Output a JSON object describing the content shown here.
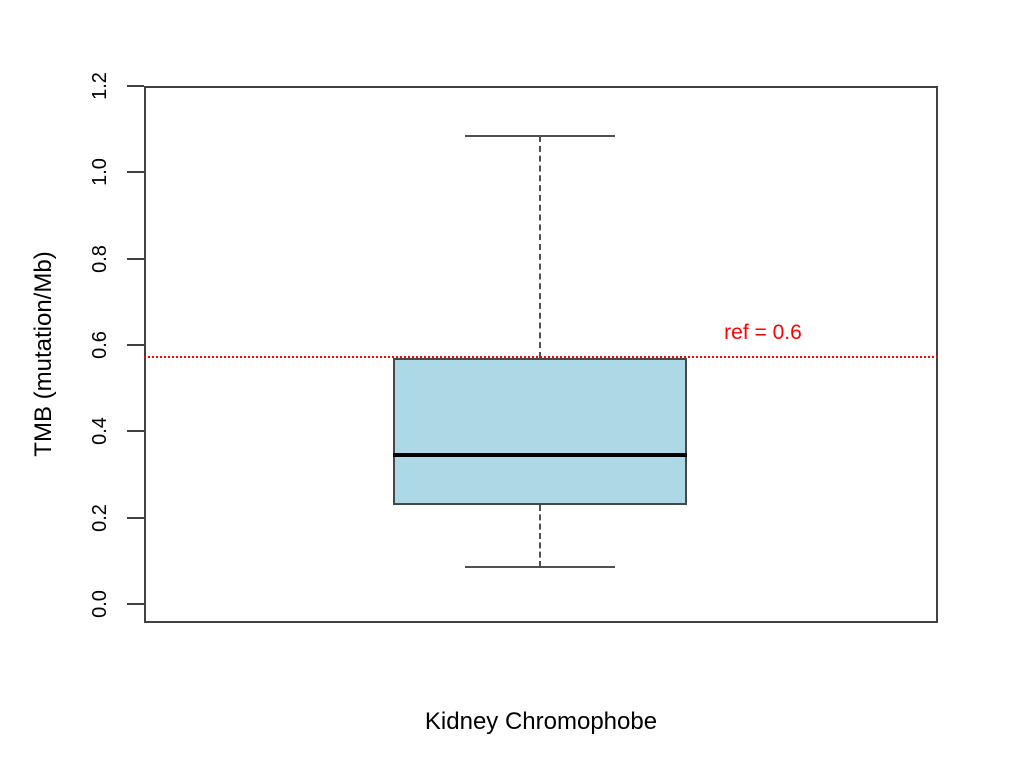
{
  "figure": {
    "background": "#ffffff",
    "colors": {
      "box_fill": "#ADD8E6",
      "box_border": "#474747",
      "median": "#000000",
      "whisker": "#4f4f4f",
      "frame": "#414141",
      "ref": "#ff0000",
      "text": "#000000"
    }
  },
  "chart_data": {
    "type": "boxplot",
    "title": "",
    "xlabel": "Kidney Chromophobe",
    "ylabel": "TMB (mutation/Mb)",
    "ylim": [
      0,
      1.2
    ],
    "y_ticks": [
      0.0,
      0.2,
      0.4,
      0.6,
      0.8,
      1.0,
      1.2
    ],
    "y_tick_labels": [
      "0.0",
      "0.2",
      "0.4",
      "0.6",
      "0.8",
      "1.0",
      "1.2"
    ],
    "grid": false,
    "categories": [
      "Kidney Chromophobe"
    ],
    "series": [
      {
        "name": "Kidney Chromophobe",
        "whisker_low": 0.085,
        "q1": 0.23,
        "median": 0.345,
        "q3": 0.57,
        "whisker_high": 1.085,
        "outliers": []
      }
    ],
    "ref_line": {
      "label": "ref = 0.6",
      "labeled_value": 0.6,
      "drawn_at": 0.572,
      "style": "dotted",
      "color": "#ff0000",
      "orientation": "horizontal"
    }
  }
}
